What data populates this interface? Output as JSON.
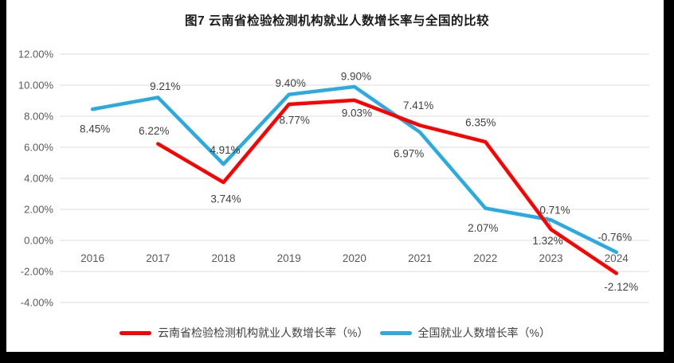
{
  "window": {
    "background": "#ffffff",
    "frame_color": "#000000"
  },
  "chart_data": {
    "type": "line",
    "title": "图7  云南省检验检测机构就业人数增长率与全国的比较",
    "categories": [
      "2016",
      "2017",
      "2018",
      "2019",
      "2020",
      "2021",
      "2022",
      "2023",
      "2024"
    ],
    "series": [
      {
        "name": "云南省检验检测机构就业人数增长率（%）",
        "color": "#FF0000",
        "values": [
          null,
          6.22,
          3.74,
          8.77,
          9.03,
          7.41,
          6.35,
          0.71,
          -2.12
        ],
        "data_labels": [
          "",
          "6.22%",
          "3.74%",
          "8.77%",
          "9.03%",
          "7.41%",
          "6.35%",
          "0.71%",
          "-2.12%"
        ],
        "label_offsets": [
          [
            0,
            0
          ],
          [
            -5,
            -16
          ],
          [
            3,
            21
          ],
          [
            7,
            20
          ],
          [
            3,
            16
          ],
          [
            -2,
            -25
          ],
          [
            -6,
            -24
          ],
          [
            5,
            -24
          ],
          [
            6,
            17
          ]
        ]
      },
      {
        "name": "全国就业人数增长率（%）",
        "color": "#29ABE2",
        "values": [
          8.45,
          9.21,
          4.91,
          9.4,
          9.9,
          6.97,
          2.07,
          1.32,
          -0.76
        ],
        "data_labels": [
          "8.45%",
          "9.21%",
          "4.91%",
          "9.40%",
          "9.90%",
          "6.97%",
          "2.07%",
          "1.32%",
          "-0.76%"
        ],
        "label_offsets": [
          [
            3,
            25
          ],
          [
            9,
            -14
          ],
          [
            2,
            -18
          ],
          [
            2,
            -14
          ],
          [
            2,
            -13
          ],
          [
            -14,
            27
          ],
          [
            -3,
            25
          ],
          [
            -4,
            26
          ],
          [
            -2,
            -19
          ]
        ]
      }
    ],
    "ylim": [
      -4,
      12
    ],
    "ytick_step": 2,
    "ytick_labels": [
      "12.00%",
      "10.00%",
      "8.00%",
      "6.00%",
      "4.00%",
      "2.00%",
      "0.00%",
      "-2.00%",
      "-4.00%"
    ],
    "grid": "horizontal",
    "gridline_color": "#DCDCDC",
    "axis_text_color": "#595959",
    "data_label_color": "#404040",
    "legend_position": "bottom",
    "leader_line": {
      "series": 0,
      "index": 7,
      "color": "#A6A6A6"
    }
  }
}
